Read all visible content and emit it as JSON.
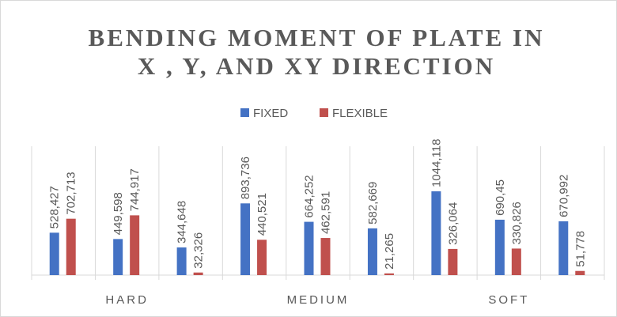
{
  "chart_data": {
    "type": "bar",
    "title": [
      "BENDING MOMENT OF PLATE IN",
      "X , Y, AND XY DIRECTION"
    ],
    "groups": [
      "HARD",
      "MEDIUM",
      "SOFT"
    ],
    "categories": [
      null,
      null,
      null,
      null,
      null,
      null,
      null,
      null,
      null
    ],
    "series": [
      {
        "name": "FIXED",
        "color": "#4472c4",
        "values": [
          528.427,
          449.598,
          344.648,
          893.736,
          664.252,
          582.669,
          1044.118,
          690.45,
          670.992
        ],
        "value_labels": [
          "528,427",
          "449,598",
          "344,648",
          "893,736",
          "664,252",
          "582,669",
          "1044,118",
          "690,45",
          "670,992"
        ]
      },
      {
        "name": "FLEXIBLE",
        "color": "#c0504d",
        "values": [
          702.713,
          744.917,
          32.326,
          440.521,
          462.591,
          21.265,
          326.064,
          330.826,
          51.778
        ],
        "value_labels": [
          "702,713",
          "744,917",
          "32,326",
          "440,521",
          "462,591",
          "21,265",
          "326,064",
          "330,826",
          "51,778"
        ]
      }
    ],
    "ylim": [
      0,
      2000
    ],
    "legend": "top"
  }
}
